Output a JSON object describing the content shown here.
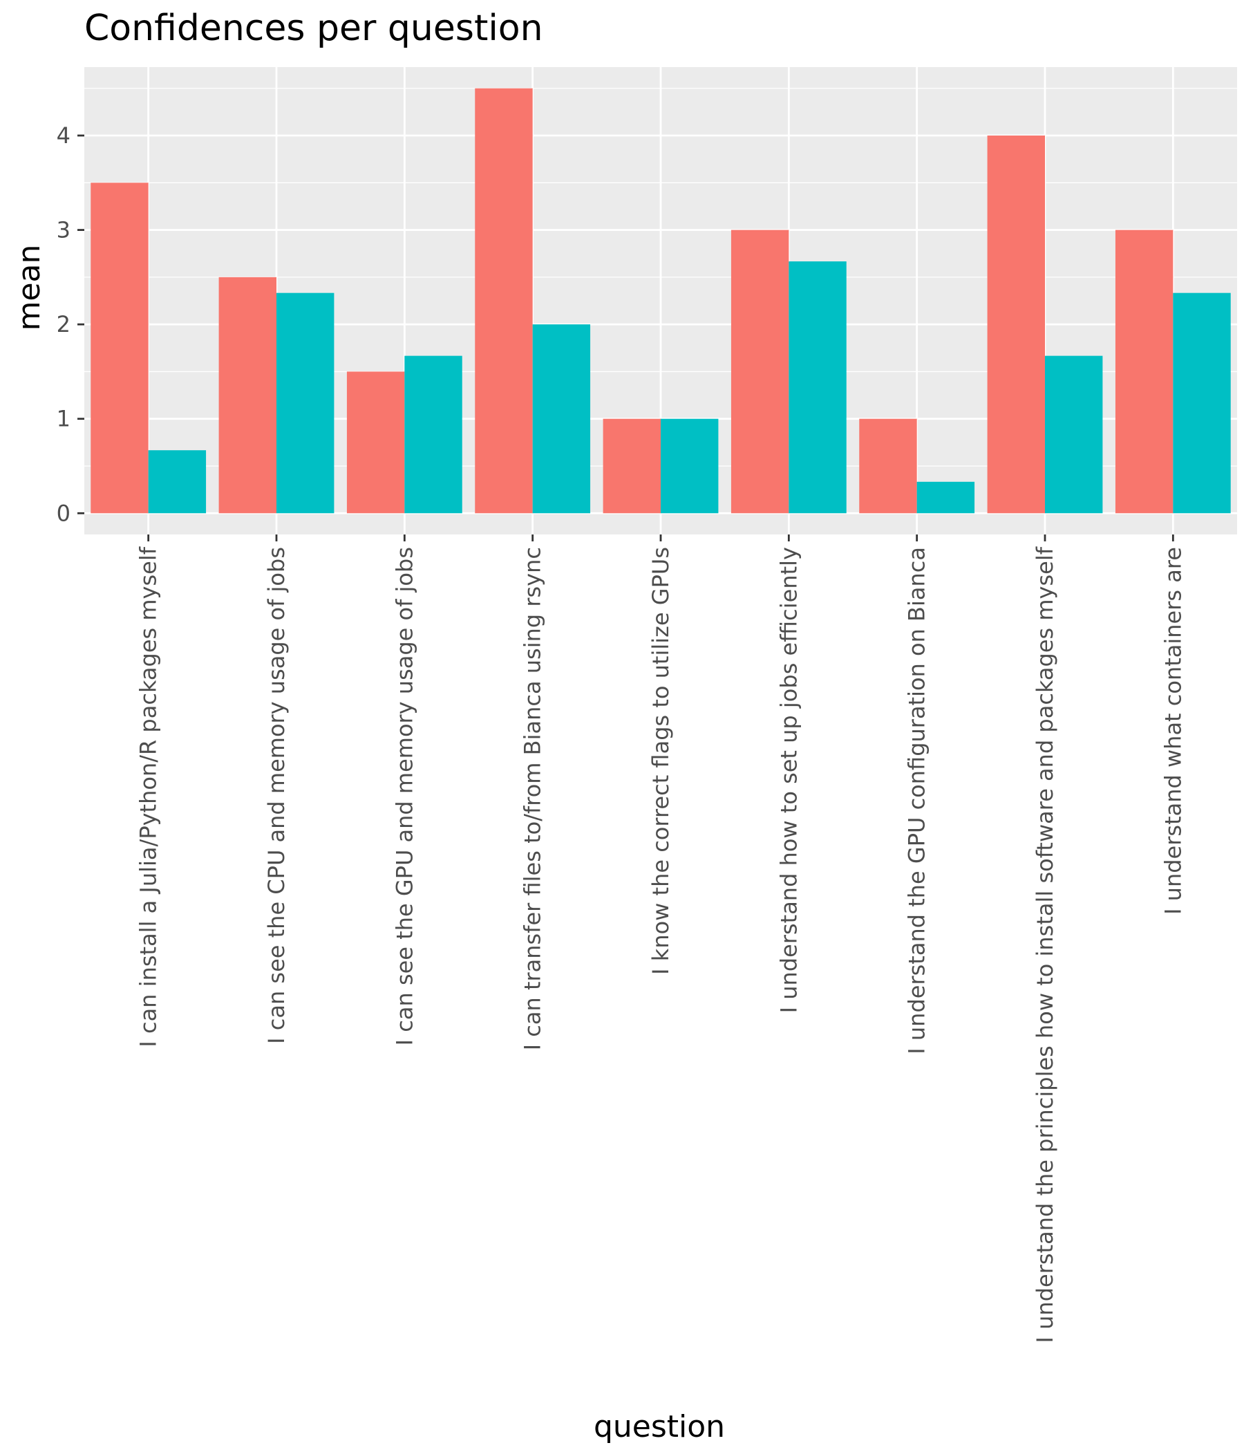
{
  "chart_data": {
    "type": "bar",
    "title": "Confidences per question",
    "xlabel": "question",
    "ylabel": "mean",
    "categories": [
      "I can install a Julia/Python/R packages myself",
      "I can see the CPU and memory usage of jobs",
      "I can see the GPU and memory usage of jobs",
      "I can transfer files to/from Bianca using rsync",
      "I know the correct flags to utilize GPUs",
      "I understand how to set up jobs efficiently",
      "I understand the GPU configuration on Bianca",
      "I understand the principles how to install software and packages myself",
      "I understand what containers are"
    ],
    "series": [
      {
        "color": "#F8766D",
        "values": [
          3.5,
          2.5,
          1.5,
          4.5,
          1.0,
          3.0,
          1.0,
          4.0,
          3.0
        ]
      },
      {
        "color": "#00BFC4",
        "values": [
          0.667,
          2.333,
          1.667,
          2.0,
          1.0,
          2.667,
          0.333,
          1.667,
          2.333
        ]
      }
    ],
    "ylim": [
      -0.225,
      4.725
    ],
    "yticks": [
      0,
      1,
      2,
      3,
      4
    ],
    "grid": true,
    "legend": "none",
    "panel_color": "#EBEBEB"
  }
}
